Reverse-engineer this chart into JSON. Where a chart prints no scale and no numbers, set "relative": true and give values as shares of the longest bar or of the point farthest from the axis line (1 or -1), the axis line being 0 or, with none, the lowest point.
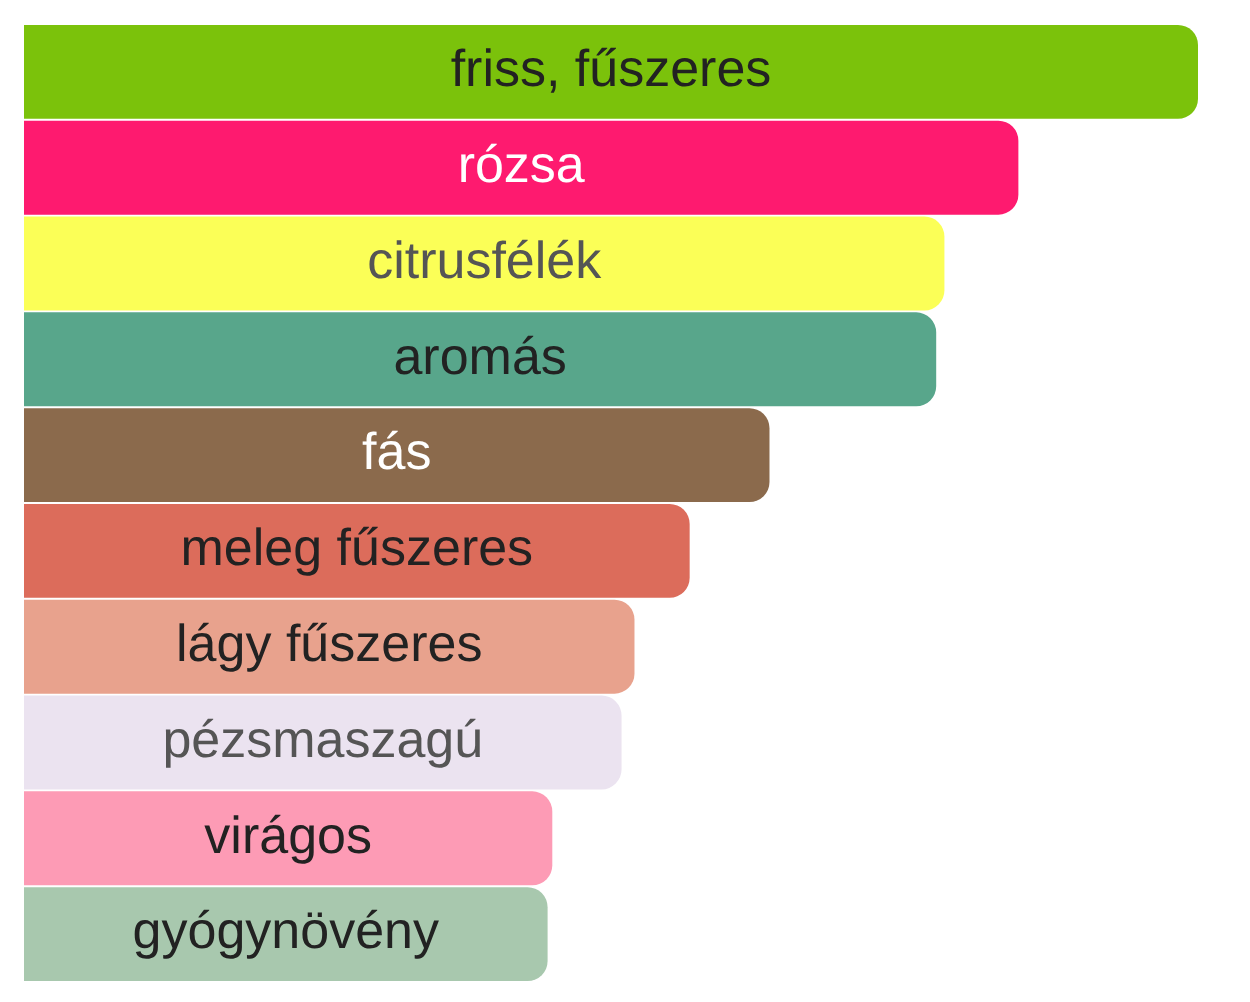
{
  "chart_data": {
    "type": "bar",
    "orientation": "horizontal",
    "relative": true,
    "categories": [
      "friss, fűszeres",
      "rózsa",
      "citrusfélék",
      "aromás",
      "fás",
      "meleg fűszeres",
      "lágy fűszeres",
      "pézsmaszagú",
      "virágos",
      "gyógynövény"
    ],
    "values": [
      1,
      0.847,
      0.784,
      0.777,
      0.635,
      0.567,
      0.52,
      0.509,
      0.45,
      0.446
    ],
    "colors": [
      "#7bc20b",
      "#fe1a6f",
      "#fbff57",
      "#58a68b",
      "#8b6a4c",
      "#dc6c5b",
      "#e8a28d",
      "#ebe3f0",
      "#fd9bb5",
      "#a8c8ae"
    ],
    "legend": false
  }
}
